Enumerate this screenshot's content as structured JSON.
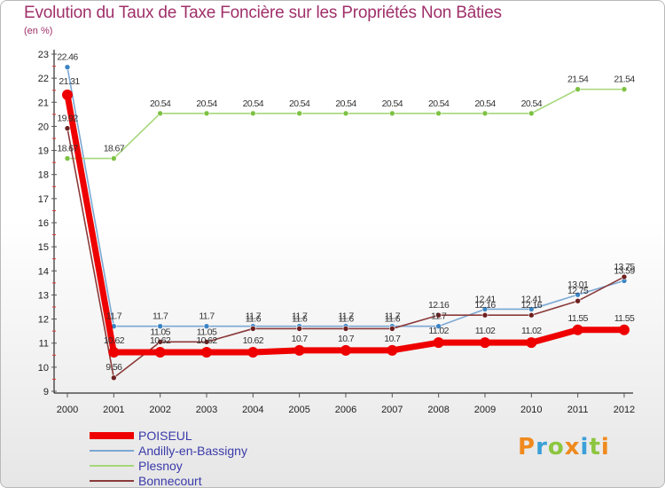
{
  "header": {
    "title": "Evolution du Taux de Taxe Foncière sur les Propriétés Non Bâties",
    "unit": "(en %)"
  },
  "logo": {
    "letters": [
      "P",
      "r",
      "o",
      "x",
      "i",
      "t",
      "i"
    ],
    "colors": [
      "#f08a1e",
      "#3aa0d8",
      "#8cc63f",
      "#f08a1e",
      "#3aa0d8",
      "#8cc63f",
      "#f08a1e"
    ]
  },
  "chart_data": {
    "type": "line",
    "title": "Evolution du Taux de Taxe Foncière sur les Propriétés Non Bâties",
    "ylabel": "(en %)",
    "xlabel": "",
    "ylim": [
      9,
      23
    ],
    "yticks": [
      "9",
      "10",
      "11",
      "12",
      "13",
      "14",
      "15",
      "16",
      "17",
      "18",
      "19",
      "20",
      "21",
      "22",
      "23"
    ],
    "categories": [
      "2000",
      "2001",
      "2002",
      "2003",
      "2004",
      "2005",
      "2006",
      "2007",
      "2008",
      "2009",
      "2010",
      "2011",
      "2012"
    ],
    "grid": false,
    "legend_position": "bottom-left",
    "series": [
      {
        "name": "Andilly-en-Bassigny",
        "color": "#7aa7d3",
        "marker": "#3b84c4",
        "values": [
          22.46,
          11.7,
          11.7,
          11.7,
          11.7,
          11.7,
          11.7,
          11.7,
          11.7,
          12.41,
          12.41,
          13.01,
          13.59
        ],
        "labels": [
          "22.46",
          "11.7",
          "11.7",
          "11.7",
          "11.7",
          "11.7",
          "11.7",
          "11.7",
          "11.7",
          "12.41",
          "12.41",
          "13.01",
          "13.59"
        ]
      },
      {
        "name": "Plesnoy",
        "color": "#a6d77a",
        "marker": "#7cc242",
        "values": [
          18.67,
          18.67,
          20.54,
          20.54,
          20.54,
          20.54,
          20.54,
          20.54,
          20.54,
          20.54,
          20.54,
          21.54,
          21.54
        ],
        "labels": [
          "18.67",
          "18.67",
          "20.54",
          "20.54",
          "20.54",
          "20.54",
          "20.54",
          "20.54",
          "20.54",
          "20.54",
          "20.54",
          "21.54",
          "21.54"
        ]
      },
      {
        "name": "Bonnecourt",
        "color": "#8b3a3a",
        "marker": "#6e1f1f",
        "values": [
          19.92,
          9.56,
          11.05,
          11.05,
          11.6,
          11.6,
          11.6,
          11.6,
          12.16,
          12.16,
          12.16,
          12.75,
          13.75
        ],
        "labels": [
          "19.92",
          "9.56",
          "11.05",
          "11.05",
          "11.6",
          "11.6",
          "11.6",
          "11.6",
          "12.16",
          "12.16",
          "12.16",
          "12.75",
          "13.75"
        ]
      },
      {
        "name": "POISEUL",
        "color": "#ee0000",
        "marker": "#ee0000",
        "values": [
          21.31,
          10.62,
          10.62,
          10.62,
          10.62,
          10.7,
          10.7,
          10.7,
          11.02,
          11.02,
          11.02,
          11.55,
          11.55
        ],
        "labels": [
          "21.31",
          "10.62",
          "10.62",
          "10.62",
          "10.62",
          "10.7",
          "10.7",
          "10.7",
          "11.02",
          "11.02",
          "11.02",
          "11.55",
          "11.55"
        ]
      }
    ],
    "legend": [
      "POISEUL",
      "Andilly-en-Bassigny",
      "Plesnoy",
      "Bonnecourt"
    ]
  }
}
